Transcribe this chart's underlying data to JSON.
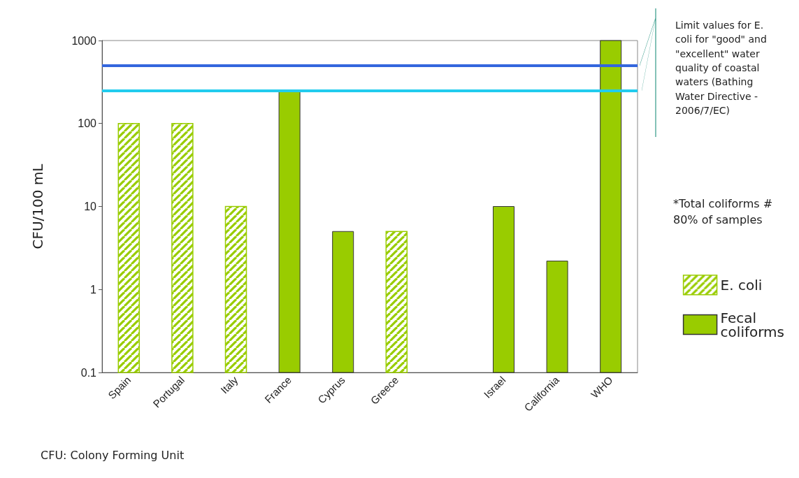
{
  "chart_data": {
    "type": "bar",
    "ylabel": "CFU/100 mL",
    "categories": [
      "Spain",
      "Portugal",
      "Italy",
      "France",
      "Cyprus",
      "Greece",
      null,
      "Israel",
      "California",
      "WHO"
    ],
    "series": [
      {
        "name": "E. coli",
        "color": "#99cc00",
        "values": [
          100,
          100,
          10,
          null,
          null,
          5,
          null,
          null,
          null,
          null
        ]
      },
      {
        "name": "Fecal coliforms",
        "color": "#99cc00",
        "values": [
          null,
          null,
          null,
          250,
          5,
          null,
          null,
          10,
          2.2,
          1000
        ]
      }
    ],
    "log": "y",
    "ylim": [
      0.1,
      1000
    ],
    "yticks": [
      0.1,
      1,
      10,
      100,
      1000
    ],
    "grid": false,
    "legend": "right",
    "ref_lines": [
      {
        "axis": "y",
        "value": 500,
        "color": "#3366dd"
      },
      {
        "axis": "y",
        "value": 250,
        "color": "#22ccee"
      }
    ],
    "annotations": [
      "Limit values for E. coli for \"good\" and \"excellent\" water quality of coastal waters (Bathing Water Directive - 2006/7/EC)",
      "*Total coliforms # 80% of samples",
      "CFU: Colony Forming Unit"
    ]
  }
}
